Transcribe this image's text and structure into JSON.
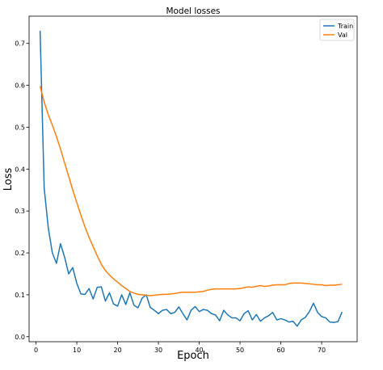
{
  "chart_data": {
    "type": "line",
    "title": "Model losses",
    "xlabel": "Epoch",
    "ylabel": "Loss",
    "xlim": [
      -1.7,
      78.7
    ],
    "ylim": [
      -0.012,
      0.765
    ],
    "xticks": [
      0,
      10,
      20,
      30,
      40,
      50,
      60,
      70
    ],
    "yticks": [
      0.0,
      0.1,
      0.2,
      0.3,
      0.4,
      0.5,
      0.6,
      0.7
    ],
    "grid": false,
    "legend_position": "upper right",
    "series": [
      {
        "name": "Train",
        "color": "#1f77b4",
        "x": [
          1,
          2,
          3,
          4,
          5,
          6,
          7,
          8,
          9,
          10,
          11,
          12,
          13,
          14,
          15,
          16,
          17,
          18,
          19,
          20,
          21,
          22,
          23,
          24,
          25,
          26,
          27,
          28,
          29,
          30,
          31,
          32,
          33,
          34,
          35,
          36,
          37,
          38,
          39,
          40,
          41,
          42,
          43,
          44,
          45,
          46,
          47,
          48,
          49,
          50,
          51,
          52,
          53,
          54,
          55,
          56,
          57,
          58,
          59,
          60,
          61,
          62,
          63,
          64,
          65,
          66,
          67,
          68,
          69,
          70,
          71,
          72,
          73,
          74,
          75
        ],
        "values": [
          0.73,
          0.355,
          0.26,
          0.2,
          0.175,
          0.222,
          0.19,
          0.15,
          0.165,
          0.127,
          0.102,
          0.101,
          0.115,
          0.09,
          0.118,
          0.119,
          0.085,
          0.105,
          0.078,
          0.073,
          0.1,
          0.077,
          0.105,
          0.075,
          0.069,
          0.092,
          0.1,
          0.07,
          0.063,
          0.055,
          0.063,
          0.065,
          0.055,
          0.058,
          0.071,
          0.055,
          0.04,
          0.063,
          0.072,
          0.06,
          0.065,
          0.063,
          0.055,
          0.052,
          0.038,
          0.063,
          0.052,
          0.045,
          0.045,
          0.038,
          0.055,
          0.062,
          0.04,
          0.053,
          0.037,
          0.045,
          0.05,
          0.058,
          0.04,
          0.043,
          0.04,
          0.035,
          0.037,
          0.025,
          0.04,
          0.046,
          0.06,
          0.08,
          0.058,
          0.048,
          0.045,
          0.035,
          0.034,
          0.036,
          0.059
        ]
      },
      {
        "name": "Val",
        "color": "#ff7f0e",
        "x": [
          1,
          2,
          3,
          4,
          5,
          6,
          7,
          8,
          9,
          10,
          11,
          12,
          13,
          14,
          15,
          16,
          17,
          18,
          19,
          20,
          21,
          22,
          23,
          24,
          25,
          26,
          27,
          28,
          29,
          30,
          31,
          32,
          33,
          34,
          35,
          36,
          37,
          38,
          39,
          40,
          41,
          42,
          43,
          44,
          45,
          46,
          47,
          48,
          49,
          50,
          51,
          52,
          53,
          54,
          55,
          56,
          57,
          58,
          59,
          60,
          61,
          62,
          63,
          64,
          65,
          66,
          67,
          68,
          69,
          70,
          71,
          72,
          73,
          74,
          75
        ],
        "values": [
          0.598,
          0.56,
          0.53,
          0.505,
          0.478,
          0.448,
          0.415,
          0.383,
          0.35,
          0.32,
          0.29,
          0.262,
          0.237,
          0.215,
          0.193,
          0.173,
          0.158,
          0.147,
          0.138,
          0.13,
          0.122,
          0.115,
          0.108,
          0.104,
          0.101,
          0.1,
          0.099,
          0.098,
          0.099,
          0.1,
          0.101,
          0.101,
          0.102,
          0.103,
          0.105,
          0.106,
          0.106,
          0.106,
          0.106,
          0.107,
          0.108,
          0.111,
          0.113,
          0.114,
          0.114,
          0.114,
          0.114,
          0.114,
          0.114,
          0.115,
          0.117,
          0.119,
          0.118,
          0.12,
          0.122,
          0.12,
          0.121,
          0.123,
          0.124,
          0.124,
          0.124,
          0.127,
          0.128,
          0.128,
          0.128,
          0.127,
          0.126,
          0.125,
          0.124,
          0.124,
          0.122,
          0.123,
          0.123,
          0.124,
          0.125
        ]
      }
    ]
  }
}
